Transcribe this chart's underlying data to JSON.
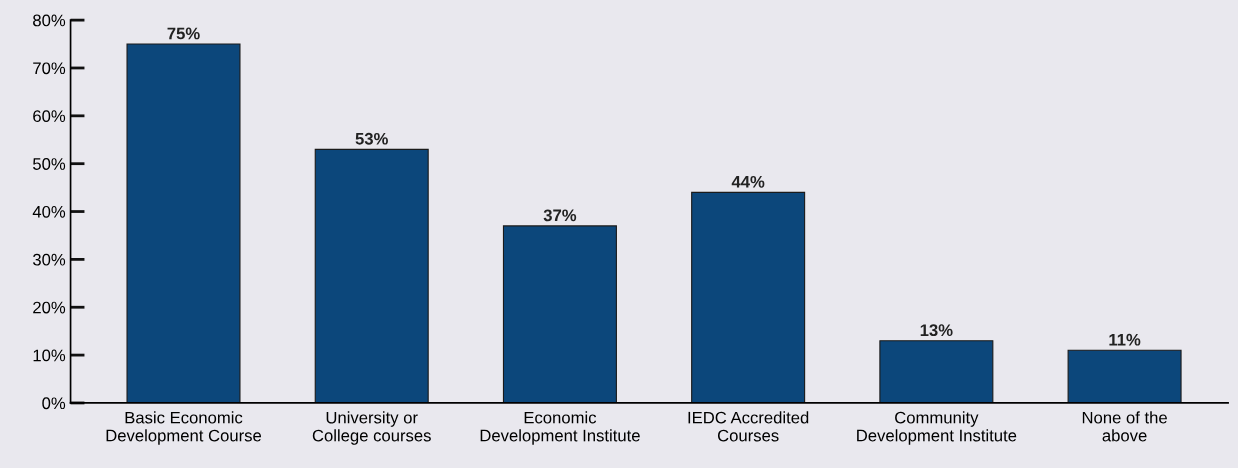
{
  "chart_data": {
    "type": "bar",
    "categories": [
      "Basic Economic\nDevelopment Course",
      "University or\nCollege courses",
      "Economic\nDevelopment Institute",
      "IEDC Accredited\nCourses",
      "Community\nDevelopment Institute",
      "None of the\nabove"
    ],
    "values": [
      75,
      53,
      37,
      44,
      13,
      11
    ],
    "value_labels": [
      "75%",
      "53%",
      "37%",
      "44%",
      "13%",
      "11%"
    ],
    "color": "#0c477b",
    "ylim": [
      0,
      80
    ],
    "yticks": [
      {
        "value": 0,
        "label": "0%"
      },
      {
        "value": 10,
        "label": "10%"
      },
      {
        "value": 20,
        "label": "20%"
      },
      {
        "value": 30,
        "label": "30%"
      },
      {
        "value": 40,
        "label": "40%"
      },
      {
        "value": 50,
        "label": "50%"
      },
      {
        "value": 60,
        "label": "60%"
      },
      {
        "value": 70,
        "label": "70%"
      },
      {
        "value": 80,
        "label": "80%"
      }
    ],
    "grid": false
  }
}
